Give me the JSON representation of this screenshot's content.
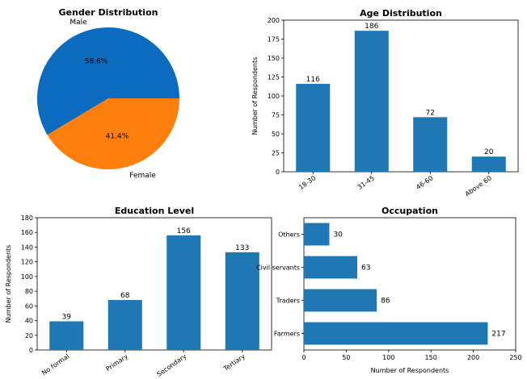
{
  "colors": {
    "bar": "#1f77b4",
    "pie_male": "#0b6bbf",
    "pie_female": "#ff7f0e"
  },
  "chart_data": [
    {
      "type": "pie",
      "title": "Gender Distribution",
      "categories": [
        "Male",
        "Female"
      ],
      "values": [
        58.6,
        41.4
      ],
      "pct_labels": [
        "58.6%",
        "41.4%"
      ]
    },
    {
      "type": "bar",
      "title": "Age Distribution",
      "xlabel": "",
      "ylabel": "Number of Respondents",
      "categories": [
        "18-30",
        "31-45",
        "46-60",
        "Above 60"
      ],
      "values": [
        116,
        186,
        72,
        20
      ],
      "ylim": [
        0,
        200
      ],
      "yticks": [
        0,
        25,
        50,
        75,
        100,
        125,
        150,
        175,
        200
      ]
    },
    {
      "type": "bar",
      "title": "Education Level",
      "xlabel": "",
      "ylabel": "Number of Respondents",
      "categories": [
        "No formal",
        "Primary",
        "Secondary",
        "Tertiary"
      ],
      "values": [
        39,
        68,
        156,
        133
      ],
      "ylim": [
        0,
        180
      ],
      "yticks": [
        0,
        20,
        40,
        60,
        80,
        100,
        120,
        140,
        160,
        180
      ]
    },
    {
      "type": "bar",
      "orientation": "horizontal",
      "title": "Occupation",
      "xlabel": "Number of Respondents",
      "ylabel": "",
      "categories": [
        "Farmers",
        "Traders",
        "Civil servants",
        "Others"
      ],
      "values": [
        217,
        86,
        63,
        30
      ],
      "xlim": [
        0,
        250
      ],
      "xticks": [
        0,
        50,
        100,
        150,
        200,
        250
      ]
    }
  ]
}
